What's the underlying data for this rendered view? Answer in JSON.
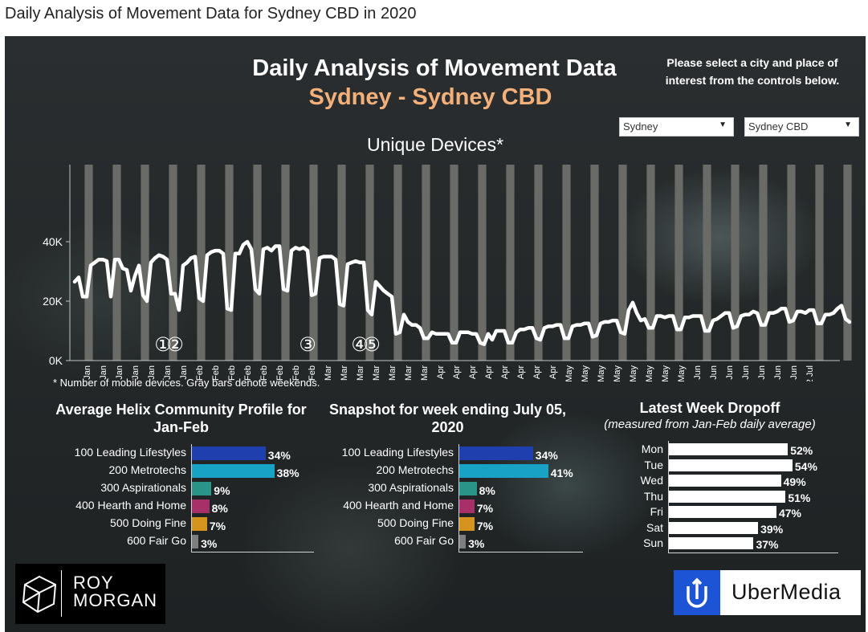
{
  "page_title": "Daily Analysis of Movement Data for Sydney CBD in 2020",
  "header": {
    "title": "Daily Analysis of Movement Data",
    "subtitle": "Sydney - Sydney CBD",
    "instructions": "Please select a city and place of interest from the controls below."
  },
  "controls": {
    "city": "Sydney",
    "place": "Sydney CBD"
  },
  "footnote": "* Number of mobile devices. Gray bars denote weekends.",
  "colors": {
    "line": "#ffffff",
    "weekend_bar": "#6a6a66",
    "annotation": "#ffffff",
    "cat_100": "#1f3fae",
    "cat_200": "#17a2c6",
    "cat_300": "#2a9488",
    "cat_400": "#a83068",
    "cat_500": "#d4941e",
    "cat_600": "#7f7f7f",
    "dropoff_bar": "#ffffff"
  },
  "chart_data": [
    {
      "type": "line",
      "title": "Unique Devices*",
      "ylim": [
        0,
        52000
      ],
      "yticks": [
        {
          "value": 0,
          "label": "0K"
        },
        {
          "value": 20000,
          "label": "20K"
        },
        {
          "value": 40000,
          "label": "40K"
        }
      ],
      "x_start": "1 Jan",
      "x_end": "6 Jul",
      "x_tick_labels": [
        "4 Jan",
        "8 Jan",
        "12 Jan",
        "16 Jan",
        "20 Jan",
        "24 Jan",
        "28 Jan",
        "1 Feb",
        "5 Feb",
        "9 Feb",
        "13 Feb",
        "17 Feb",
        "21 Feb",
        "25 Feb",
        "29 Feb",
        "4 Mar",
        "8 Mar",
        "12 Mar",
        "16 Mar",
        "20 Mar",
        "24 Mar",
        "28 Mar",
        "1 Apr",
        "5 Apr",
        "9 Apr",
        "13 Apr",
        "17 Apr",
        "21 Apr",
        "25 Apr",
        "29 Apr",
        "3 May",
        "7 May",
        "11 May",
        "15 May",
        "19 May",
        "23 May",
        "27 May",
        "31 May",
        "4 Jun",
        "8 Jun",
        "12 Jun",
        "16 Jun",
        "20 Jun",
        "24 Jun",
        "28 Jun",
        "2 Jul"
      ],
      "weekend_bars": "gray bars mark each Saturday and Sunday",
      "series": [
        {
          "values": [
            26500,
            28000,
            21500,
            21500,
            32000,
            33000,
            34000,
            34000,
            33500,
            21500,
            34000,
            34000,
            31000,
            30500,
            23500,
            28500,
            32000,
            22000,
            20000,
            33000,
            34500,
            35500,
            35000,
            34000,
            22500,
            22500,
            17000,
            32000,
            33000,
            34500,
            35000,
            21000,
            20000,
            35500,
            36500,
            37000,
            37000,
            36000,
            17500,
            17000,
            36000,
            36000,
            39000,
            40000,
            37500,
            24000,
            22500,
            37500,
            38000,
            37000,
            38500,
            38500,
            24000,
            23500,
            37000,
            38000,
            37500,
            38000,
            37000,
            22000,
            22500,
            34500,
            35000,
            35000,
            35000,
            34000,
            19000,
            18500,
            32500,
            33000,
            33500,
            33000,
            33000,
            17000,
            15500,
            26500,
            25000,
            23500,
            22500,
            21500,
            9000,
            9500,
            15500,
            13000,
            12000,
            12000,
            11000,
            7500,
            7500,
            9500,
            9000,
            9000,
            9000,
            9000,
            6000,
            6000,
            9500,
            9500,
            9500,
            9000,
            9000,
            6000,
            5500,
            9000,
            7000,
            10000,
            10000,
            10000,
            6000,
            6000,
            9500,
            10500,
            10500,
            11000,
            11000,
            7500,
            7000,
            11000,
            11500,
            11500,
            12000,
            12000,
            7500,
            7500,
            11500,
            12000,
            12000,
            12500,
            12500,
            8000,
            8500,
            12500,
            13000,
            13000,
            13500,
            13500,
            9500,
            9000,
            17000,
            19500,
            16000,
            13500,
            14000,
            11000,
            11000,
            15000,
            15000,
            14500,
            15000,
            15000,
            10500,
            10500,
            14500,
            14500,
            15000,
            15000,
            15000,
            10000,
            10000,
            13500,
            14000,
            15000,
            16000,
            16000,
            11000,
            11500,
            15000,
            15500,
            15500,
            16500,
            16000,
            12000,
            12000,
            16000,
            16000,
            16500,
            17500,
            17500,
            13000,
            13500,
            16500,
            16500,
            16000,
            17000,
            17000,
            12500,
            12500,
            15500,
            15500,
            16000,
            17500,
            18500,
            14000,
            13000
          ]
        }
      ],
      "annotations": [
        {
          "label": "①",
          "date": "23 Jan"
        },
        {
          "label": "②",
          "date": "26 Jan"
        },
        {
          "label": "③",
          "date": "28 Feb"
        },
        {
          "label": "④",
          "date": "12 Mar"
        },
        {
          "label": "⑤",
          "date": "15 Mar"
        }
      ]
    },
    {
      "type": "bar",
      "orientation": "horizontal",
      "title": "Average Helix Community Profile for Jan-Feb",
      "categories": [
        "100 Leading Lifestyles",
        "200 Metrotechs",
        "300 Aspirationals",
        "400 Hearth and Home",
        "500 Doing Fine",
        "600 Fair Go"
      ],
      "values": [
        34,
        38,
        9,
        8,
        7,
        3
      ],
      "value_labels": [
        "34%",
        "38%",
        "9%",
        "8%",
        "7%",
        "3%"
      ]
    },
    {
      "type": "bar",
      "orientation": "horizontal",
      "title": "Snapshot for week ending July 05, 2020",
      "categories": [
        "100 Leading Lifestyles",
        "200 Metrotechs",
        "300 Aspirationals",
        "400 Hearth and Home",
        "500 Doing Fine",
        "600 Fair Go"
      ],
      "values": [
        34,
        41,
        8,
        7,
        7,
        3
      ],
      "value_labels": [
        "34%",
        "41%",
        "8%",
        "7%",
        "7%",
        "3%"
      ]
    },
    {
      "type": "bar",
      "orientation": "horizontal",
      "title": "Latest Week Dropoff",
      "subtitle": "(measured from Jan-Feb daily average)",
      "categories": [
        "Mon",
        "Tue",
        "Wed",
        "Thu",
        "Fri",
        "Sat",
        "Sun"
      ],
      "values": [
        52,
        54,
        49,
        51,
        47,
        39,
        37
      ],
      "value_labels": [
        "52%",
        "54%",
        "49%",
        "51%",
        "47%",
        "39%",
        "37%"
      ]
    }
  ],
  "logos": {
    "roy_morgan": {
      "line1": "ROY",
      "line2": "MORGAN"
    },
    "ubermedia": {
      "text": "UberMedia"
    }
  }
}
